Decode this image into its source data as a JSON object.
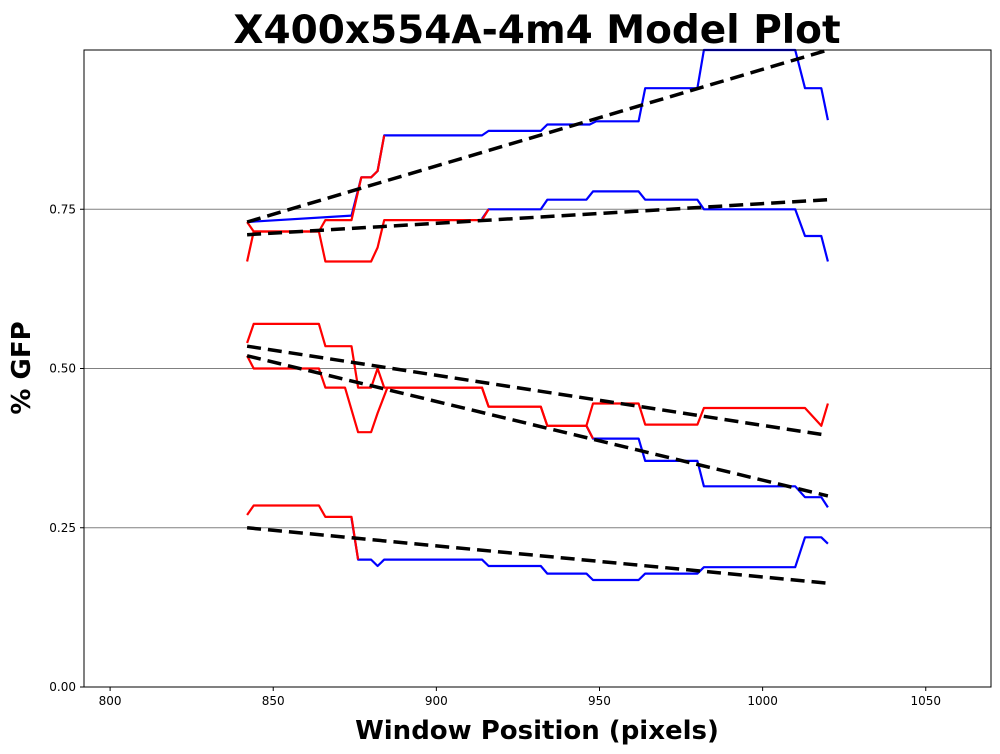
{
  "chart_data": {
    "type": "line",
    "title": "X400x554A-4m4 Model Plot",
    "xlabel": "Window Position (pixels)",
    "ylabel": "% GFP",
    "xlim": [
      792,
      1070
    ],
    "ylim": [
      0,
      1.0
    ],
    "x_ticks": [
      800,
      850,
      900,
      950,
      1000,
      1050
    ],
    "y_ticks": [
      0.0,
      0.25,
      0.5,
      0.75
    ],
    "x_tick_labels": [
      "800",
      "850",
      "900",
      "950",
      "1000",
      "1050"
    ],
    "y_tick_labels": [
      "0.00",
      "0.25",
      "0.50",
      "0.75"
    ],
    "grid": {
      "horizontal_lines_at": [
        0.25,
        0.5,
        0.75
      ],
      "color": "#808080"
    },
    "colors": {
      "blue": "#0000ff",
      "red": "#ff0000",
      "fit": "#000000"
    },
    "series": [
      {
        "color": "#0000ff",
        "style": "solid",
        "points": [
          [
            842,
            0.73
          ],
          [
            874,
            0.74
          ],
          [
            877,
            0.8
          ],
          [
            880,
            0.8
          ],
          [
            882,
            0.81
          ],
          [
            884,
            0.866
          ],
          [
            914,
            0.866
          ],
          [
            916,
            0.873
          ],
          [
            932,
            0.873
          ],
          [
            934,
            0.883
          ],
          [
            947,
            0.883
          ],
          [
            949,
            0.888
          ],
          [
            962,
            0.888
          ],
          [
            964,
            0.94
          ],
          [
            980,
            0.94
          ],
          [
            982,
            1.0
          ],
          [
            1010,
            1.0
          ],
          [
            1013,
            0.94
          ],
          [
            1018,
            0.94
          ],
          [
            1020,
            0.89
          ]
        ]
      },
      {
        "color": "#0000ff",
        "style": "solid",
        "points": [
          [
            914,
            0.735
          ],
          [
            916,
            0.75
          ],
          [
            932,
            0.75
          ],
          [
            934,
            0.765
          ],
          [
            946,
            0.765
          ],
          [
            948,
            0.778
          ],
          [
            962,
            0.778
          ],
          [
            964,
            0.765
          ],
          [
            980,
            0.765
          ],
          [
            982,
            0.75
          ],
          [
            1010,
            0.75
          ],
          [
            1013,
            0.708
          ],
          [
            1018,
            0.708
          ],
          [
            1020,
            0.668
          ]
        ]
      },
      {
        "color": "#0000ff",
        "style": "solid",
        "points": [
          [
            946,
            0.41
          ],
          [
            948,
            0.39
          ],
          [
            962,
            0.39
          ],
          [
            964,
            0.355
          ],
          [
            980,
            0.355
          ],
          [
            982,
            0.315
          ],
          [
            1010,
            0.315
          ],
          [
            1013,
            0.298
          ],
          [
            1018,
            0.298
          ],
          [
            1020,
            0.282
          ]
        ]
      },
      {
        "color": "#0000ff",
        "style": "solid",
        "points": [
          [
            874,
            0.265
          ],
          [
            876,
            0.2
          ],
          [
            880,
            0.2
          ],
          [
            882,
            0.19
          ],
          [
            884,
            0.2
          ],
          [
            914,
            0.2
          ],
          [
            916,
            0.19
          ],
          [
            932,
            0.19
          ],
          [
            934,
            0.178
          ],
          [
            946,
            0.178
          ],
          [
            948,
            0.168
          ],
          [
            962,
            0.168
          ],
          [
            964,
            0.178
          ],
          [
            980,
            0.178
          ],
          [
            982,
            0.188
          ],
          [
            1010,
            0.188
          ],
          [
            1013,
            0.235
          ],
          [
            1018,
            0.235
          ],
          [
            1020,
            0.225
          ]
        ]
      },
      {
        "color": "#ff0000",
        "style": "solid",
        "points": [
          [
            842,
            0.668
          ],
          [
            844,
            0.715
          ],
          [
            864,
            0.715
          ],
          [
            866,
            0.733
          ],
          [
            874,
            0.733
          ],
          [
            877,
            0.8
          ],
          [
            880,
            0.8
          ],
          [
            882,
            0.81
          ],
          [
            884,
            0.866
          ]
        ]
      },
      {
        "color": "#ff0000",
        "style": "solid",
        "points": [
          [
            842,
            0.73
          ],
          [
            844,
            0.715
          ],
          [
            864,
            0.715
          ],
          [
            866,
            0.668
          ],
          [
            880,
            0.668
          ],
          [
            882,
            0.69
          ],
          [
            884,
            0.733
          ],
          [
            914,
            0.733
          ],
          [
            916,
            0.75
          ]
        ]
      },
      {
        "color": "#ff0000",
        "style": "solid",
        "points": [
          [
            842,
            0.54
          ],
          [
            844,
            0.57
          ],
          [
            864,
            0.57
          ],
          [
            866,
            0.535
          ],
          [
            874,
            0.535
          ],
          [
            876,
            0.47
          ],
          [
            880,
            0.47
          ],
          [
            882,
            0.5
          ],
          [
            884,
            0.47
          ],
          [
            914,
            0.47
          ],
          [
            916,
            0.44
          ],
          [
            932,
            0.44
          ],
          [
            934,
            0.41
          ],
          [
            946,
            0.41
          ],
          [
            948,
            0.445
          ],
          [
            962,
            0.445
          ],
          [
            964,
            0.412
          ],
          [
            980,
            0.412
          ],
          [
            982,
            0.438
          ],
          [
            1013,
            0.438
          ],
          [
            1018,
            0.41
          ],
          [
            1020,
            0.445
          ]
        ]
      },
      {
        "color": "#ff0000",
        "style": "solid",
        "points": [
          [
            842,
            0.52
          ],
          [
            844,
            0.5
          ],
          [
            864,
            0.5
          ],
          [
            866,
            0.47
          ],
          [
            872,
            0.47
          ],
          [
            876,
            0.4
          ],
          [
            880,
            0.4
          ],
          [
            882,
            0.43
          ],
          [
            885,
            0.47
          ],
          [
            914,
            0.47
          ],
          [
            916,
            0.44
          ],
          [
            932,
            0.44
          ],
          [
            934,
            0.41
          ],
          [
            946,
            0.41
          ],
          [
            948,
            0.39
          ]
        ]
      },
      {
        "color": "#ff0000",
        "style": "solid",
        "points": [
          [
            842,
            0.27
          ],
          [
            844,
            0.285
          ],
          [
            864,
            0.285
          ],
          [
            866,
            0.267
          ],
          [
            874,
            0.267
          ],
          [
            876,
            0.2
          ]
        ]
      },
      {
        "color": "#000000",
        "style": "dashed",
        "points": [
          [
            842,
            0.73
          ],
          [
            1020,
            1.0
          ]
        ]
      },
      {
        "color": "#000000",
        "style": "dashed",
        "points": [
          [
            842,
            0.71
          ],
          [
            1020,
            0.765
          ]
        ]
      },
      {
        "color": "#000000",
        "style": "dashed",
        "points": [
          [
            842,
            0.535
          ],
          [
            1020,
            0.395
          ]
        ]
      },
      {
        "color": "#000000",
        "style": "dashed",
        "points": [
          [
            842,
            0.52
          ],
          [
            1020,
            0.3
          ]
        ]
      },
      {
        "color": "#000000",
        "style": "dashed",
        "points": [
          [
            842,
            0.25
          ],
          [
            1020,
            0.163
          ]
        ]
      }
    ]
  }
}
